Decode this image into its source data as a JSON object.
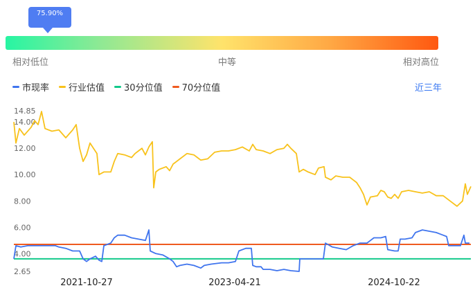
{
  "tooltip": {
    "value": "75.90%"
  },
  "scale": {
    "low": "相对低位",
    "mid": "中等",
    "high": "相对高位"
  },
  "legend": [
    {
      "label": "市现率",
      "color": "#3f74ee"
    },
    {
      "label": "行业估值",
      "color": "#f8c21b"
    },
    {
      "label": "30分位值",
      "color": "#12c98a"
    },
    {
      "label": "70分位值",
      "color": "#ef5a1f"
    }
  ],
  "range_link": "近三年",
  "chart_data": {
    "type": "line",
    "title": "",
    "xlabel": "",
    "ylabel": "",
    "ylim": [
      2.65,
      14.85
    ],
    "y_ticks": [
      "14.85",
      "14.00",
      "12.00",
      "10.00",
      "8.00",
      "6.00",
      "4.00",
      "2.65"
    ],
    "x_ticks": [
      "2021-10-27",
      "2023-04-21",
      "2024-10-22"
    ],
    "series": [
      {
        "name": "市现率",
        "color": "#3f74ee",
        "points": [
          [
            0,
            3.6
          ],
          [
            3,
            4.6
          ],
          [
            10,
            4.5
          ],
          [
            20,
            4.6
          ],
          [
            30,
            4.6
          ],
          [
            40,
            4.6
          ],
          [
            50,
            4.6
          ],
          [
            60,
            4.6
          ],
          [
            65,
            4.5
          ],
          [
            75,
            4.4
          ],
          [
            85,
            4.2
          ],
          [
            95,
            4.2
          ],
          [
            100,
            3.6
          ],
          [
            105,
            3.4
          ],
          [
            110,
            3.6
          ],
          [
            118,
            3.8
          ],
          [
            123,
            3.5
          ],
          [
            127,
            3.4
          ],
          [
            130,
            4.6
          ],
          [
            135,
            4.7
          ],
          [
            140,
            4.8
          ],
          [
            145,
            5.2
          ],
          [
            150,
            5.4
          ],
          [
            160,
            5.4
          ],
          [
            170,
            5.2
          ],
          [
            180,
            5.1
          ],
          [
            190,
            5.0
          ],
          [
            195,
            5.8
          ],
          [
            197,
            4.2
          ],
          [
            205,
            4.0
          ],
          [
            215,
            3.9
          ],
          [
            225,
            3.6
          ],
          [
            230,
            3.4
          ],
          [
            235,
            3.0
          ],
          [
            240,
            3.1
          ],
          [
            250,
            3.2
          ],
          [
            260,
            3.1
          ],
          [
            270,
            2.9
          ],
          [
            275,
            3.1
          ],
          [
            285,
            3.2
          ],
          [
            300,
            3.3
          ],
          [
            310,
            3.3
          ],
          [
            320,
            3.4
          ],
          [
            325,
            4.2
          ],
          [
            335,
            4.4
          ],
          [
            343,
            4.4
          ],
          [
            345,
            3.1
          ],
          [
            350,
            3.0
          ],
          [
            357,
            3.0
          ],
          [
            360,
            2.8
          ],
          [
            370,
            2.8
          ],
          [
            380,
            2.7
          ],
          [
            390,
            2.8
          ],
          [
            400,
            2.7
          ],
          [
            412,
            2.65
          ],
          [
            413,
            3.6
          ],
          [
            420,
            3.6
          ],
          [
            430,
            3.6
          ],
          [
            440,
            3.6
          ],
          [
            447,
            3.6
          ],
          [
            450,
            4.8
          ],
          [
            460,
            4.5
          ],
          [
            470,
            4.4
          ],
          [
            480,
            4.3
          ],
          [
            490,
            4.6
          ],
          [
            500,
            4.8
          ],
          [
            510,
            4.8
          ],
          [
            515,
            5.0
          ],
          [
            520,
            5.2
          ],
          [
            530,
            5.2
          ],
          [
            537,
            5.3
          ],
          [
            540,
            4.3
          ],
          [
            550,
            4.2
          ],
          [
            555,
            4.2
          ],
          [
            558,
            5.1
          ],
          [
            565,
            5.1
          ],
          [
            575,
            5.2
          ],
          [
            580,
            5.6
          ],
          [
            590,
            5.8
          ],
          [
            600,
            5.7
          ],
          [
            610,
            5.6
          ],
          [
            620,
            5.4
          ],
          [
            625,
            5.3
          ],
          [
            628,
            4.6
          ],
          [
            635,
            4.6
          ],
          [
            645,
            4.6
          ],
          [
            650,
            5.4
          ],
          [
            652,
            4.8
          ],
          [
            658,
            4.8
          ]
        ]
      },
      {
        "name": "行业估值",
        "color": "#f8c21b",
        "points": [
          [
            0,
            14.0
          ],
          [
            3,
            12.4
          ],
          [
            8,
            13.5
          ],
          [
            15,
            13.0
          ],
          [
            25,
            13.6
          ],
          [
            30,
            14.1
          ],
          [
            35,
            13.8
          ],
          [
            40,
            14.8
          ],
          [
            45,
            13.5
          ],
          [
            55,
            13.3
          ],
          [
            65,
            13.4
          ],
          [
            75,
            12.8
          ],
          [
            85,
            13.4
          ],
          [
            90,
            13.8
          ],
          [
            95,
            12.0
          ],
          [
            100,
            11.0
          ],
          [
            105,
            11.5
          ],
          [
            110,
            12.4
          ],
          [
            115,
            12.0
          ],
          [
            120,
            11.6
          ],
          [
            123,
            10.0
          ],
          [
            130,
            10.2
          ],
          [
            140,
            10.2
          ],
          [
            145,
            11.0
          ],
          [
            150,
            11.6
          ],
          [
            160,
            11.5
          ],
          [
            170,
            11.3
          ],
          [
            175,
            11.6
          ],
          [
            180,
            11.8
          ],
          [
            185,
            12.0
          ],
          [
            190,
            11.5
          ],
          [
            195,
            12.1
          ],
          [
            200,
            12.5
          ],
          [
            202,
            9.0
          ],
          [
            205,
            10.2
          ],
          [
            210,
            10.4
          ],
          [
            220,
            10.6
          ],
          [
            225,
            10.3
          ],
          [
            230,
            10.8
          ],
          [
            240,
            11.2
          ],
          [
            250,
            11.6
          ],
          [
            260,
            11.5
          ],
          [
            265,
            11.3
          ],
          [
            270,
            11.1
          ],
          [
            280,
            11.2
          ],
          [
            290,
            11.7
          ],
          [
            300,
            11.8
          ],
          [
            310,
            11.8
          ],
          [
            320,
            11.9
          ],
          [
            330,
            12.1
          ],
          [
            340,
            11.8
          ],
          [
            345,
            12.3
          ],
          [
            350,
            11.9
          ],
          [
            360,
            11.8
          ],
          [
            370,
            11.6
          ],
          [
            380,
            11.9
          ],
          [
            390,
            12.0
          ],
          [
            395,
            12.3
          ],
          [
            400,
            12.0
          ],
          [
            408,
            11.6
          ],
          [
            412,
            10.2
          ],
          [
            418,
            10.4
          ],
          [
            425,
            10.2
          ],
          [
            435,
            10.0
          ],
          [
            440,
            10.5
          ],
          [
            448,
            10.6
          ],
          [
            450,
            9.8
          ],
          [
            458,
            9.6
          ],
          [
            465,
            9.9
          ],
          [
            475,
            9.8
          ],
          [
            485,
            9.8
          ],
          [
            490,
            9.6
          ],
          [
            495,
            9.4
          ],
          [
            500,
            9.0
          ],
          [
            505,
            8.5
          ],
          [
            510,
            7.7
          ],
          [
            515,
            8.3
          ],
          [
            525,
            8.4
          ],
          [
            530,
            8.8
          ],
          [
            535,
            8.7
          ],
          [
            540,
            8.3
          ],
          [
            545,
            8.2
          ],
          [
            550,
            8.5
          ],
          [
            555,
            8.2
          ],
          [
            560,
            8.7
          ],
          [
            570,
            8.8
          ],
          [
            580,
            8.7
          ],
          [
            590,
            8.6
          ],
          [
            600,
            8.7
          ],
          [
            610,
            8.4
          ],
          [
            620,
            8.4
          ],
          [
            630,
            8.0
          ],
          [
            640,
            7.6
          ],
          [
            648,
            8.0
          ],
          [
            652,
            9.3
          ],
          [
            655,
            8.5
          ],
          [
            660,
            9.1
          ]
        ]
      },
      {
        "name": "30分位值",
        "color": "#12c98a",
        "points": [
          [
            0,
            3.6
          ],
          [
            660,
            3.6
          ]
        ]
      },
      {
        "name": "70分位值",
        "color": "#ef5a1f",
        "points": [
          [
            0,
            4.7
          ],
          [
            660,
            4.7
          ]
        ]
      }
    ]
  }
}
